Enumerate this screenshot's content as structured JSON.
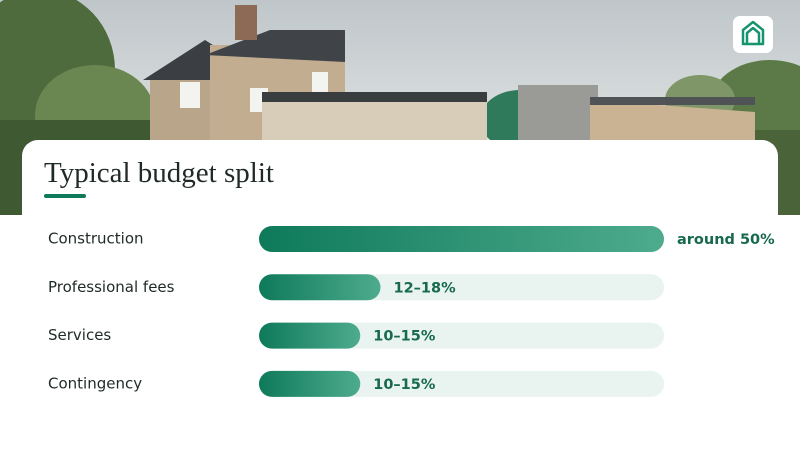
{
  "chart_data": {
    "type": "bar",
    "orientation": "horizontal",
    "title": "Typical budget split",
    "categories": [
      "Construction",
      "Professional fees",
      "Services",
      "Contingency"
    ],
    "values": [
      50,
      15,
      12.5,
      12.5
    ],
    "value_labels": [
      "around 50%",
      "12–18%",
      "10–15%",
      "10–15%"
    ],
    "color": "#0e7a5a",
    "xlim": [
      0,
      50
    ]
  }
}
